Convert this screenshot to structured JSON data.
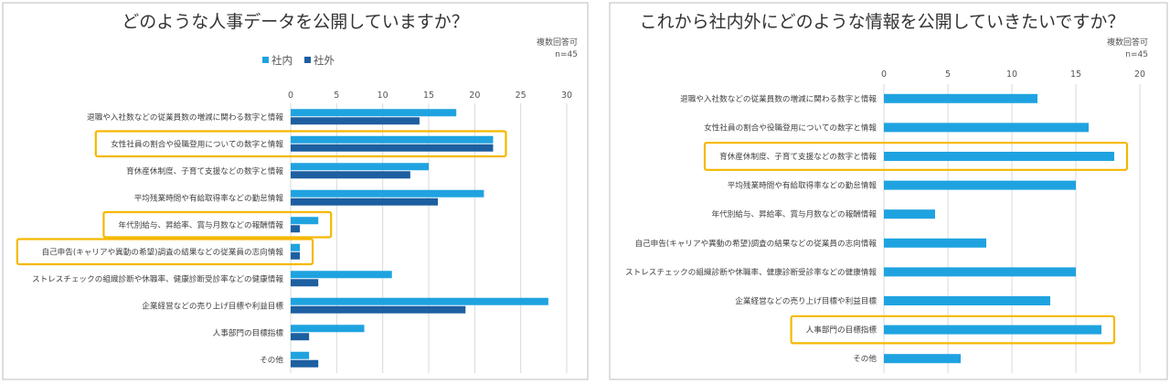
{
  "colors": {
    "inner": "#1fa3e0",
    "outer": "#1d5fa0",
    "highlight": "#f5b800"
  },
  "chart_data": [
    {
      "type": "bar",
      "orientation": "horizontal",
      "title": "どのような人事データを公開していますか？",
      "note": "複数回答可",
      "n_label": "n=45",
      "legend_position": "top-left",
      "grid": true,
      "xlim": [
        0,
        30
      ],
      "xticks": [
        "0",
        "5",
        "10",
        "15",
        "20",
        "25",
        "30"
      ],
      "categories": [
        "退職や入社数などの従業員数の増減に関わる数字と情報",
        "女性社員の割合や役職登用についての数字と情報",
        "育休産休制度、子育て支援などの数字と情報",
        "平均残業時間や有給取得率などの勤怠情報",
        "年代別給与、昇給率、賞与月数などの報酬情報",
        "自己申告(キャリアや異動の希望)調査の結果などの従業員の志向情報",
        "ストレスチェックの組織診断や休職率、健康診断受診率などの健康情報",
        "企業経営などの売り上げ目標や利益目標",
        "人事部門の目標指標",
        "その他"
      ],
      "series": [
        {
          "name": "社内",
          "values": [
            18,
            22,
            15,
            21,
            3,
            1,
            11,
            28,
            8,
            2
          ]
        },
        {
          "name": "社外",
          "values": [
            14,
            22,
            13,
            16,
            1,
            1,
            3,
            19,
            2,
            3
          ]
        }
      ],
      "highlighted": [
        1,
        4,
        5
      ]
    },
    {
      "type": "bar",
      "orientation": "horizontal",
      "title": "これから社内外にどのような情報を公開していきたいですか？",
      "note": "複数回答可",
      "n_label": "n=45",
      "grid": true,
      "xlim": [
        0,
        20
      ],
      "xticks": [
        "0",
        "5",
        "10",
        "15",
        "20"
      ],
      "categories": [
        "退職や入社数などの従業員数の増減に関わる数字と情報",
        "女性社員の割合や役職登用についての数字と情報",
        "育休産休制度、子育て支援などの数字と情報",
        "平均残業時間や有給取得率などの勤怠情報",
        "年代別給与、昇給率、賞与月数などの報酬情報",
        "自己申告(キャリアや異動の希望)調査の結果などの従業員の志向情報",
        "ストレスチェックの組織診断や休職率、健康診断受診率などの健康情報",
        "企業経営などの売り上げ目標や利益目標",
        "人事部門の目標指標",
        "その他"
      ],
      "series": [
        {
          "values": [
            12,
            16,
            18,
            15,
            4,
            8,
            15,
            13,
            17,
            6
          ]
        }
      ],
      "highlighted": [
        2,
        8
      ]
    }
  ]
}
